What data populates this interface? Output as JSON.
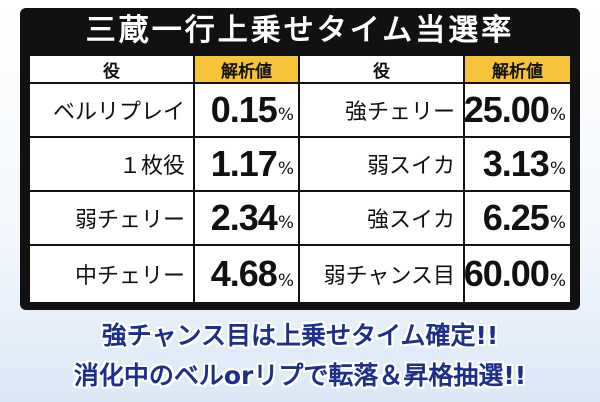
{
  "title": "三蔵一行上乗せタイム当選率",
  "headers": {
    "role": "役",
    "value": "解析値"
  },
  "percent_sign": "%",
  "left_rows": [
    {
      "name": "ベルリプレイ",
      "value": "0.15"
    },
    {
      "name": "１枚役",
      "value": "1.17"
    },
    {
      "name": "弱チェリー",
      "value": "2.34"
    },
    {
      "name": "中チェリー",
      "value": "4.68"
    }
  ],
  "right_rows": [
    {
      "name": "強チェリー",
      "value": "25.00"
    },
    {
      "name": "弱スイカ",
      "value": "3.13"
    },
    {
      "name": "強スイカ",
      "value": "6.25"
    },
    {
      "name": "弱チャンス目",
      "value": "60.00"
    }
  ],
  "footer": {
    "line1": "強チャンス目は上乗せタイム確定!!",
    "line2": "消化中のベルorリプで転落＆昇格抽選!!"
  },
  "colors": {
    "frame": "#111111",
    "header_gold": "#f6c33b",
    "footer_text": "#1c2f8c"
  }
}
